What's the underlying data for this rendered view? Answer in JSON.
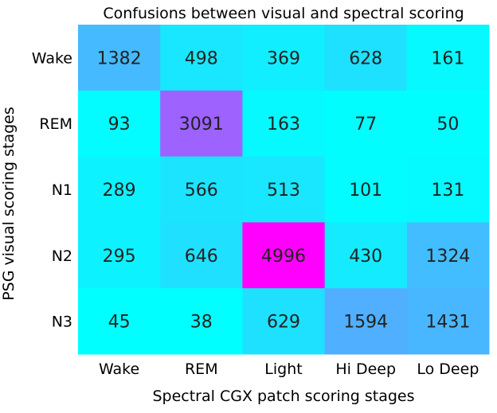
{
  "chart_data": {
    "type": "heatmap",
    "title": "Confusions between visual and spectral scoring",
    "xlabel": "Spectral CGX patch scoring stages",
    "ylabel": "PSG visual scoring stages",
    "columns": [
      "Wake",
      "REM",
      "Light",
      "Hi Deep",
      "Lo Deep"
    ],
    "rows": [
      "Wake",
      "REM",
      "N1",
      "N2",
      "N3"
    ],
    "values": [
      [
        1382,
        498,
        369,
        628,
        161
      ],
      [
        93,
        3091,
        163,
        77,
        50
      ],
      [
        289,
        566,
        513,
        101,
        131
      ],
      [
        295,
        646,
        4996,
        430,
        1324
      ],
      [
        45,
        38,
        629,
        1594,
        1431
      ]
    ],
    "colormap": [
      "#00ffff",
      "#ff00ff"
    ],
    "grid": false
  }
}
